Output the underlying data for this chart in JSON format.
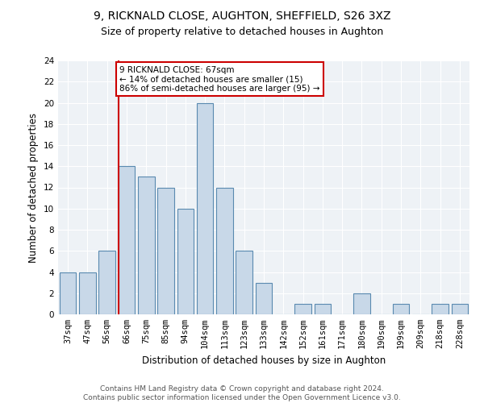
{
  "title_line1": "9, RICKNALD CLOSE, AUGHTON, SHEFFIELD, S26 3XZ",
  "title_line2": "Size of property relative to detached houses in Aughton",
  "xlabel": "Distribution of detached houses by size in Aughton",
  "ylabel": "Number of detached properties",
  "categories": [
    "37sqm",
    "47sqm",
    "56sqm",
    "66sqm",
    "75sqm",
    "85sqm",
    "94sqm",
    "104sqm",
    "113sqm",
    "123sqm",
    "133sqm",
    "142sqm",
    "152sqm",
    "161sqm",
    "171sqm",
    "180sqm",
    "190sqm",
    "199sqm",
    "209sqm",
    "218sqm",
    "228sqm"
  ],
  "values": [
    4,
    4,
    6,
    14,
    13,
    12,
    10,
    20,
    12,
    6,
    3,
    0,
    1,
    1,
    0,
    2,
    0,
    1,
    0,
    1,
    1
  ],
  "bar_color": "#c8d8e8",
  "bar_edge_color": "#5a8ab0",
  "vline_color": "#cc0000",
  "annotation_text": "9 RICKNALD CLOSE: 67sqm\n← 14% of detached houses are smaller (15)\n86% of semi-detached houses are larger (95) →",
  "annotation_box_color": "#cc0000",
  "ylim": [
    0,
    24
  ],
  "yticks": [
    0,
    2,
    4,
    6,
    8,
    10,
    12,
    14,
    16,
    18,
    20,
    22,
    24
  ],
  "footer_line1": "Contains HM Land Registry data © Crown copyright and database right 2024.",
  "footer_line2": "Contains public sector information licensed under the Open Government Licence v3.0.",
  "background_color": "#eef2f6",
  "bar_width": 0.85,
  "title_fontsize": 10,
  "subtitle_fontsize": 9,
  "xlabel_fontsize": 8.5,
  "ylabel_fontsize": 8.5,
  "tick_fontsize": 7.5,
  "footer_fontsize": 6.5
}
